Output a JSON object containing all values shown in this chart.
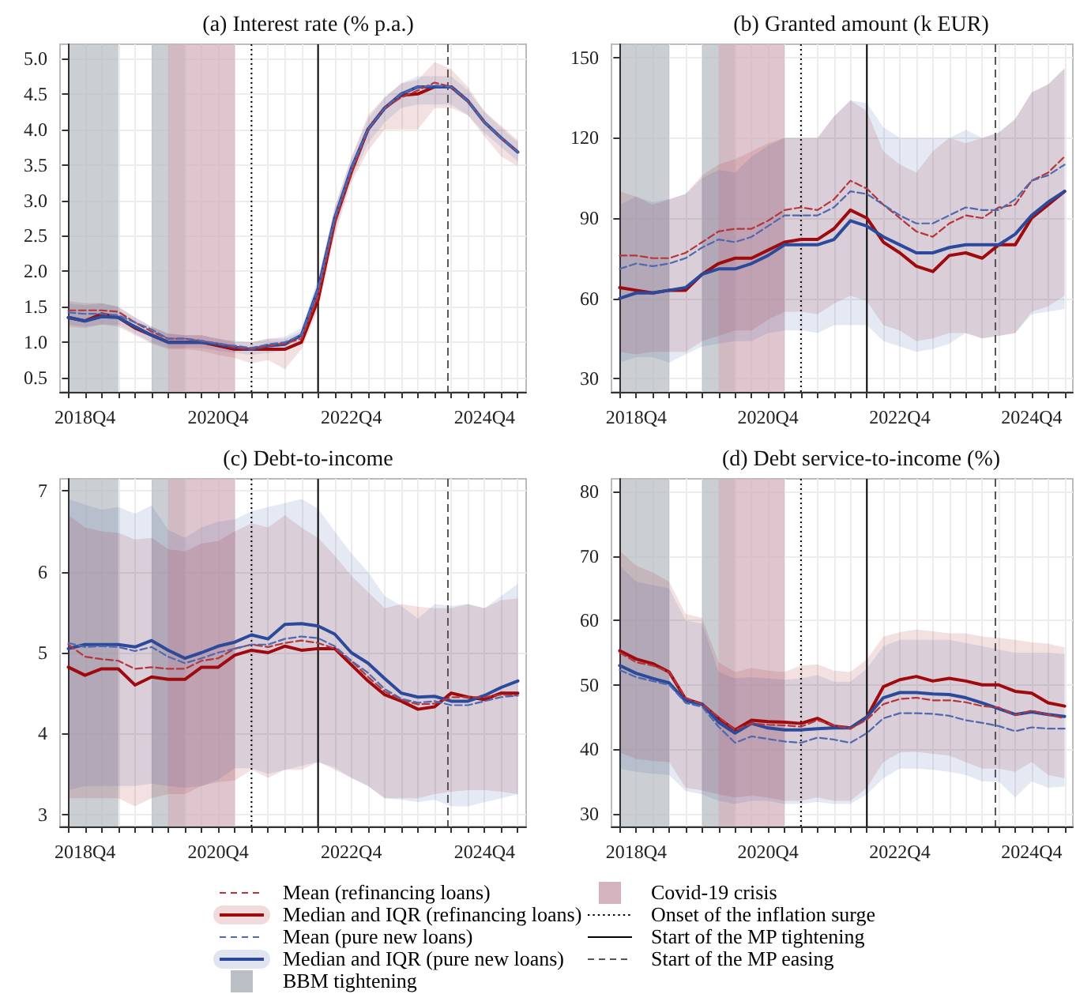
{
  "chart_data": [
    {
      "type": "line",
      "title": "(a) Interest rate (% p.a.)",
      "grid": true,
      "categories": [
        null,
        "2018Q4",
        null,
        null,
        null,
        null,
        null,
        null,
        null,
        "2020Q4",
        null,
        null,
        null,
        null,
        null,
        null,
        null,
        "2022Q4",
        null,
        null,
        null,
        null,
        null,
        null,
        null,
        "2024Q4",
        null,
        null
      ],
      "ylim": [
        0.3,
        5.2
      ],
      "yticks": [
        0.5,
        {
          "value": 1,
          "label": "1.0"
        },
        1.5,
        {
          "value": 2,
          "label": "2.0"
        },
        2.5,
        {
          "value": 3,
          "label": "3.0"
        },
        3.5,
        {
          "value": 4,
          "label": "4.0"
        },
        4.5,
        {
          "value": 5,
          "label": "5.0"
        }
      ],
      "series": [
        {
          "color": "#b5363a",
          "line_style": "dashed",
          "values": [
            1.45,
            1.45,
            1.45,
            1.43,
            1.28,
            1.15,
            1.05,
            1.05,
            1.02,
            0.98,
            0.93,
            0.9,
            0.95,
            0.98,
            1.05,
            1.65,
            2.7,
            3.4,
            4.0,
            4.3,
            4.45,
            4.55,
            4.66,
            4.6,
            4.4,
            4.1,
            3.88,
            3.68
          ]
        },
        {
          "color": "#9e0a0e",
          "line_style": "solid",
          "values": [
            1.35,
            1.3,
            1.4,
            1.35,
            1.2,
            1.1,
            1.0,
            1.0,
            1.0,
            0.95,
            0.9,
            0.9,
            0.9,
            0.9,
            1.0,
            1.6,
            2.7,
            3.4,
            4.0,
            4.3,
            4.48,
            4.5,
            4.6,
            4.6,
            4.4,
            null,
            null,
            null
          ],
          "lower": [
            1.22,
            1.2,
            1.25,
            1.22,
            1.1,
            0.98,
            0.9,
            0.9,
            0.88,
            0.82,
            0.78,
            0.7,
            0.75,
            0.62,
            0.9,
            1.45,
            2.5,
            3.25,
            3.7,
            4.0,
            4.0,
            4.0,
            4.3,
            4.3,
            4.2,
            3.9,
            3.62,
            3.48
          ],
          "upper": [
            1.58,
            1.55,
            1.55,
            1.5,
            1.35,
            1.22,
            1.12,
            1.1,
            1.1,
            1.05,
            1.0,
            1.0,
            1.05,
            1.05,
            1.15,
            1.85,
            2.9,
            3.6,
            4.2,
            4.45,
            4.65,
            4.7,
            4.95,
            4.85,
            4.6,
            4.25,
            4.05,
            3.85
          ]
        },
        {
          "color": "#5068b0",
          "line_style": "dashed",
          "values": [
            1.42,
            1.4,
            1.4,
            1.38,
            1.28,
            1.18,
            1.05,
            1.05,
            1.02,
            0.98,
            0.95,
            0.92,
            0.97,
            1.0,
            1.1,
            1.75,
            2.75,
            3.45,
            4.0,
            4.3,
            4.5,
            4.6,
            4.62,
            4.6,
            4.4,
            4.1,
            3.88,
            3.68
          ]
        },
        {
          "color": "#2b4a9b",
          "line_style": "solid",
          "values": [
            1.35,
            1.3,
            1.36,
            1.35,
            1.22,
            1.1,
            1.0,
            1.0,
            1.0,
            0.97,
            0.93,
            0.9,
            0.95,
            0.97,
            1.1,
            1.75,
            2.75,
            3.45,
            4.0,
            4.3,
            4.5,
            4.6,
            4.6,
            4.6,
            4.4,
            4.1,
            3.88,
            3.68
          ],
          "lower": [
            1.25,
            1.22,
            1.25,
            1.25,
            1.12,
            1.0,
            0.92,
            0.92,
            0.92,
            0.88,
            0.85,
            0.82,
            0.85,
            0.88,
            1.0,
            1.55,
            2.55,
            3.3,
            3.8,
            4.1,
            4.3,
            4.35,
            4.35,
            4.35,
            4.2,
            3.95,
            3.75,
            3.55
          ],
          "upper": [
            1.55,
            1.52,
            1.55,
            1.5,
            1.35,
            1.22,
            1.12,
            1.1,
            1.1,
            1.05,
            1.02,
            1.0,
            1.05,
            1.08,
            1.2,
            1.9,
            2.9,
            3.6,
            4.15,
            4.45,
            4.65,
            4.75,
            4.75,
            4.75,
            4.55,
            4.25,
            4.02,
            3.82
          ]
        }
      ]
    },
    {
      "type": "line",
      "title": "(b) Granted amount (k EUR)",
      "grid": true,
      "categories": [
        null,
        "2018Q4",
        null,
        null,
        null,
        null,
        null,
        null,
        null,
        "2020Q4",
        null,
        null,
        null,
        null,
        null,
        null,
        null,
        "2022Q4",
        null,
        null,
        null,
        null,
        null,
        null,
        null,
        "2024Q4",
        null,
        null
      ],
      "ylim": [
        25,
        155
      ],
      "yticks": [
        30,
        60,
        90,
        120,
        150
      ],
      "series": [
        {
          "color": "#b5363a",
          "line_style": "dashed",
          "values": [
            76,
            76,
            75,
            75,
            77,
            81,
            85,
            86,
            86,
            89,
            93,
            94,
            93,
            97,
            104,
            101,
            95,
            90,
            85,
            83,
            88,
            91,
            90,
            94,
            95,
            104,
            107,
            113
          ]
        },
        {
          "color": "#9e0a0e",
          "line_style": "solid",
          "values": [
            64,
            63,
            62,
            63,
            63,
            69,
            73,
            75,
            75,
            78,
            81,
            82,
            82,
            86,
            93,
            90,
            81,
            77,
            72,
            70,
            76,
            77,
            75,
            80,
            80,
            90,
            95,
            100
          ],
          "lower": [
            40,
            39,
            40,
            40,
            40,
            44,
            46,
            48,
            48,
            52,
            55,
            55,
            54,
            58,
            61,
            59,
            50,
            48,
            44,
            45,
            47,
            47,
            45,
            46,
            47,
            55,
            57,
            61
          ],
          "upper": [
            100,
            98,
            95,
            97,
            99,
            106,
            110,
            112,
            115,
            118,
            120,
            120,
            120,
            128,
            134,
            130,
            115,
            110,
            107,
            115,
            120,
            118,
            120,
            122,
            127,
            137,
            140,
            146
          ]
        },
        {
          "color": "#5068b0",
          "line_style": "dashed",
          "values": [
            71,
            73,
            72,
            73,
            75,
            79,
            82,
            81,
            83,
            87,
            91,
            91,
            91,
            94,
            100,
            99,
            95,
            91,
            88,
            88,
            91,
            94,
            93,
            93,
            97,
            104,
            106,
            110
          ]
        },
        {
          "color": "#2b4a9b",
          "line_style": "solid",
          "values": [
            60,
            62,
            62,
            63,
            64,
            69,
            71,
            71,
            73,
            76,
            80,
            80,
            80,
            82,
            89,
            87,
            83,
            80,
            77,
            77,
            79,
            80,
            80,
            80,
            84,
            91,
            96,
            100
          ],
          "lower": [
            36,
            38,
            38,
            36,
            39,
            42,
            43,
            44,
            44,
            47,
            48,
            48,
            47,
            50,
            50,
            50,
            44,
            42,
            40,
            41,
            43,
            47,
            45,
            46,
            47,
            54,
            55,
            56
          ],
          "upper": [
            95,
            98,
            96,
            97,
            99,
            105,
            108,
            107,
            113,
            117,
            120,
            120,
            120,
            128,
            134,
            133,
            124,
            120,
            120,
            120,
            120,
            123,
            120,
            122,
            127,
            137,
            140,
            146
          ]
        }
      ]
    },
    {
      "type": "line",
      "title": "(c) Debt-to-income",
      "grid": true,
      "categories": [
        null,
        "2018Q4",
        null,
        null,
        null,
        null,
        null,
        null,
        null,
        "2020Q4",
        null,
        null,
        null,
        null,
        null,
        null,
        null,
        "2022Q4",
        null,
        null,
        null,
        null,
        null,
        null,
        null,
        "2024Q4",
        null,
        null
      ],
      "ylim": [
        2.85,
        7.15
      ],
      "yticks": [
        3,
        4,
        5,
        6,
        7
      ],
      "series": [
        {
          "color": "#b5363a",
          "line_style": "dashed",
          "values": [
            5.1,
            4.95,
            4.92,
            4.9,
            4.8,
            4.82,
            4.8,
            4.8,
            4.9,
            4.93,
            5.05,
            5.1,
            5.07,
            5.12,
            5.15,
            5.12,
            5.05,
            4.9,
            4.7,
            4.52,
            4.42,
            4.36,
            4.37,
            4.45,
            4.45,
            4.45,
            4.48,
            4.47
          ]
        },
        {
          "color": "#9e0a0e",
          "line_style": "solid",
          "values": [
            4.82,
            4.72,
            4.8,
            4.8,
            4.6,
            4.7,
            4.67,
            4.67,
            4.82,
            4.82,
            4.97,
            5.03,
            5.0,
            5.08,
            5.03,
            5.05,
            5.05,
            4.85,
            4.65,
            4.48,
            4.4,
            4.3,
            4.33,
            4.5,
            4.45,
            4.42,
            4.5,
            4.5
          ],
          "lower": [
            3.2,
            3.2,
            3.2,
            3.2,
            3.1,
            3.2,
            3.25,
            3.25,
            3.35,
            3.4,
            3.42,
            3.55,
            3.45,
            3.55,
            3.55,
            3.65,
            3.55,
            3.45,
            3.35,
            3.2,
            3.2,
            3.2,
            3.25,
            3.28,
            3.3,
            3.3,
            3.28,
            3.25
          ],
          "upper": [
            6.7,
            6.55,
            6.5,
            6.48,
            6.4,
            6.42,
            6.28,
            6.25,
            6.35,
            6.38,
            6.5,
            6.6,
            6.55,
            6.7,
            6.55,
            6.42,
            6.2,
            5.95,
            5.75,
            5.55,
            5.6,
            5.57,
            5.55,
            5.55,
            5.6,
            5.55,
            5.65,
            5.67
          ]
        },
        {
          "color": "#5068b0",
          "line_style": "dashed",
          "values": [
            5.12,
            5.07,
            5.08,
            5.07,
            5.02,
            5.07,
            4.95,
            4.87,
            4.93,
            5.0,
            5.05,
            5.1,
            5.1,
            5.17,
            5.2,
            5.18,
            5.08,
            4.9,
            4.75,
            4.55,
            4.43,
            4.38,
            4.4,
            4.35,
            4.35,
            4.4,
            4.45,
            4.47
          ]
        },
        {
          "color": "#2b4a9b",
          "line_style": "solid",
          "values": [
            5.05,
            5.1,
            5.1,
            5.1,
            5.07,
            5.15,
            5.03,
            4.93,
            5.0,
            5.08,
            5.13,
            5.22,
            5.17,
            5.35,
            5.36,
            5.33,
            5.23,
            5.0,
            4.87,
            4.68,
            4.5,
            4.45,
            4.46,
            4.4,
            4.4,
            4.47,
            4.57,
            4.65
          ],
          "lower": [
            3.3,
            3.35,
            3.35,
            3.35,
            3.35,
            3.38,
            3.35,
            3.33,
            3.35,
            3.43,
            3.57,
            3.57,
            3.5,
            3.55,
            3.6,
            3.65,
            3.58,
            3.45,
            3.35,
            3.2,
            3.18,
            3.15,
            3.18,
            3.1,
            3.1,
            3.15,
            3.2,
            3.25
          ],
          "upper": [
            6.9,
            6.83,
            6.77,
            6.8,
            6.72,
            6.82,
            6.52,
            6.42,
            6.55,
            6.62,
            6.65,
            6.75,
            6.8,
            6.85,
            6.9,
            6.78,
            6.5,
            6.23,
            6.0,
            5.7,
            5.58,
            5.42,
            5.6,
            5.58,
            5.6,
            5.55,
            5.7,
            5.85
          ]
        }
      ]
    },
    {
      "type": "line",
      "title": "(d) Debt service-to-income (%)",
      "grid": true,
      "legend": "bottom",
      "categories": [
        null,
        "2018Q4",
        null,
        null,
        null,
        null,
        null,
        null,
        null,
        "2020Q4",
        null,
        null,
        null,
        null,
        null,
        null,
        null,
        "2022Q4",
        null,
        null,
        null,
        null,
        null,
        null,
        null,
        "2024Q4",
        null,
        null
      ],
      "ylim": [
        28,
        82
      ],
      "yticks": [
        30,
        40,
        50,
        60,
        70,
        80
      ],
      "annotations": [
        "BBM tightening",
        "Covid-19 crisis",
        "Onset of the inflation surge",
        "Start of the MP tightening",
        "Start of the MP easing"
      ],
      "series": [
        {
          "name": "Mean (refinancing loans)",
          "color": "#b5363a",
          "line_style": "dashed",
          "values": [
            55,
            53.5,
            53,
            52,
            48,
            47,
            45,
            43,
            44,
            43.8,
            43.7,
            43.5,
            44.5,
            43.7,
            43.2,
            44.6,
            47,
            47.8,
            48,
            47.6,
            47.6,
            47.3,
            46.7,
            46.5,
            45.3,
            46,
            45.4,
            44.8
          ]
        },
        {
          "name": "Median and IQR (refinancing loans)",
          "color": "#9e0a0e",
          "line_style": "solid",
          "values": [
            55.3,
            54,
            53.3,
            52,
            47.8,
            47,
            44.8,
            43,
            44.5,
            44.3,
            44.2,
            44,
            44.8,
            43.6,
            43.3,
            45,
            49.7,
            50.8,
            51.3,
            50.6,
            51,
            50.6,
            50,
            50,
            49,
            48.7,
            47.2,
            46.7
          ],
          "lower": [
            39.5,
            38.5,
            38.2,
            38,
            34,
            33.6,
            33,
            32.5,
            32.8,
            32.5,
            32,
            32,
            32.5,
            32,
            32,
            34,
            38,
            39.5,
            39.6,
            39.3,
            39,
            38,
            37,
            37,
            36.5,
            38,
            36,
            35.5
          ],
          "upper": [
            70.8,
            68.5,
            67.5,
            66,
            61,
            60.4,
            53.5,
            52,
            52.6,
            52.2,
            52,
            53,
            53.2,
            52.2,
            52,
            54,
            57.5,
            58.2,
            58.6,
            58.3,
            58,
            58,
            57.5,
            57.3,
            57,
            56.6,
            56.4,
            55.8
          ]
        },
        {
          "name": "Mean (pure new loans)",
          "color": "#5068b0",
          "line_style": "dashed",
          "values": [
            52.3,
            51.2,
            50.6,
            50,
            47.2,
            46.6,
            43.5,
            41,
            42,
            41.6,
            41.2,
            41,
            41.8,
            41.5,
            41,
            42.5,
            44.8,
            45.6,
            45.6,
            45.5,
            45.2,
            44.5,
            44.1,
            43.6,
            42.8,
            43.4,
            43.2,
            43.2
          ]
        },
        {
          "name": "Median and IQR (pure new loans)",
          "color": "#2b4a9b",
          "line_style": "solid",
          "values": [
            53,
            51.8,
            51,
            50.3,
            47.5,
            47,
            44.2,
            42.5,
            44,
            43.3,
            43,
            43,
            43.2,
            43.3,
            43.3,
            45,
            48,
            48.8,
            48.8,
            48.6,
            48.5,
            48,
            47.2,
            46.3,
            45.4,
            45.8,
            45.4,
            45.1
          ],
          "lower": [
            37,
            36.5,
            36.2,
            36,
            33.5,
            33,
            32,
            31.5,
            32,
            32,
            31.5,
            31.5,
            31.8,
            31.5,
            31.5,
            33,
            35.5,
            37,
            37,
            36.8,
            36.5,
            36,
            35,
            35,
            32.5,
            35,
            34,
            34.2
          ],
          "upper": [
            68.5,
            66,
            65.5,
            65,
            60,
            59.5,
            52,
            51,
            51.2,
            51,
            50.8,
            51,
            51.5,
            50.5,
            50.5,
            52.5,
            56,
            57,
            57,
            57,
            57,
            56.5,
            56,
            55.5,
            55,
            55,
            55,
            54.8
          ]
        }
      ]
    }
  ]
}
